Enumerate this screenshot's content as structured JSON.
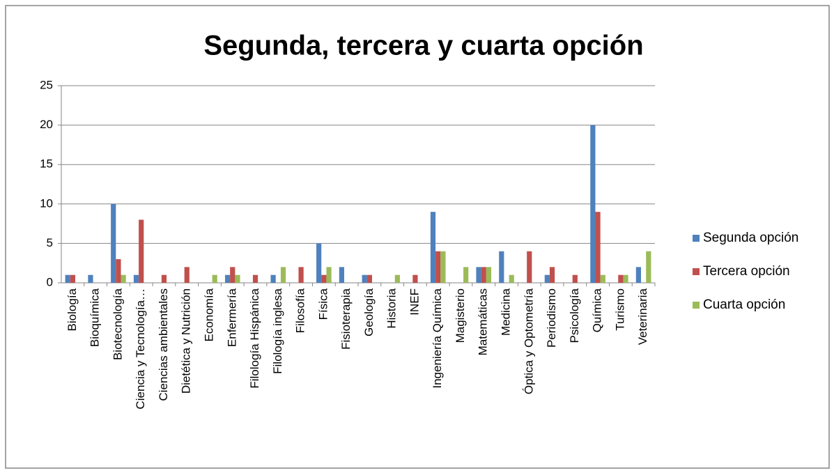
{
  "chart_data": {
    "type": "bar",
    "title": "Segunda, tercera y cuarta opción",
    "categories": [
      "Biología",
      "Bioquímica",
      "Biotecnología",
      "Ciencia y Tecnología…",
      "Ciencias ambientales",
      "Dietética y Nutrición",
      "Economía",
      "Enfermería",
      "Filología Hispánica",
      "Filología inglesa",
      "Filosofía",
      "Física",
      "Fisioterapia",
      "Geología",
      "Historia",
      "INEF",
      "Ingeniería Química",
      "Magisterio",
      "Matemáticas",
      "Medicina",
      "Óptica y Optometría",
      "Periodismo",
      "Psicología",
      "Química",
      "Turismo",
      "Veterinaria"
    ],
    "series": [
      {
        "name": "Segunda opción",
        "color": "#4f81bd",
        "values": [
          1,
          1,
          10,
          1,
          0,
          0,
          0,
          1,
          0,
          1,
          0,
          5,
          2,
          1,
          0,
          0,
          9,
          0,
          2,
          4,
          0,
          1,
          0,
          20,
          0,
          2
        ]
      },
      {
        "name": "Tercera opción",
        "color": "#c0504d",
        "values": [
          1,
          0,
          3,
          8,
          1,
          2,
          0,
          2,
          1,
          0,
          2,
          1,
          0,
          1,
          0,
          1,
          4,
          0,
          2,
          0,
          4,
          2,
          1,
          9,
          1,
          0
        ]
      },
      {
        "name": "Cuarta opción",
        "color": "#9bbb59",
        "values": [
          0,
          0,
          1,
          0,
          0,
          0,
          1,
          1,
          0,
          2,
          0,
          2,
          0,
          0,
          1,
          0,
          4,
          2,
          2,
          1,
          0,
          0,
          0,
          1,
          1,
          4
        ]
      }
    ],
    "ylim": [
      0,
      25
    ],
    "yticks": [
      0,
      5,
      10,
      15,
      20,
      25
    ],
    "grid": true,
    "legend": "right"
  }
}
